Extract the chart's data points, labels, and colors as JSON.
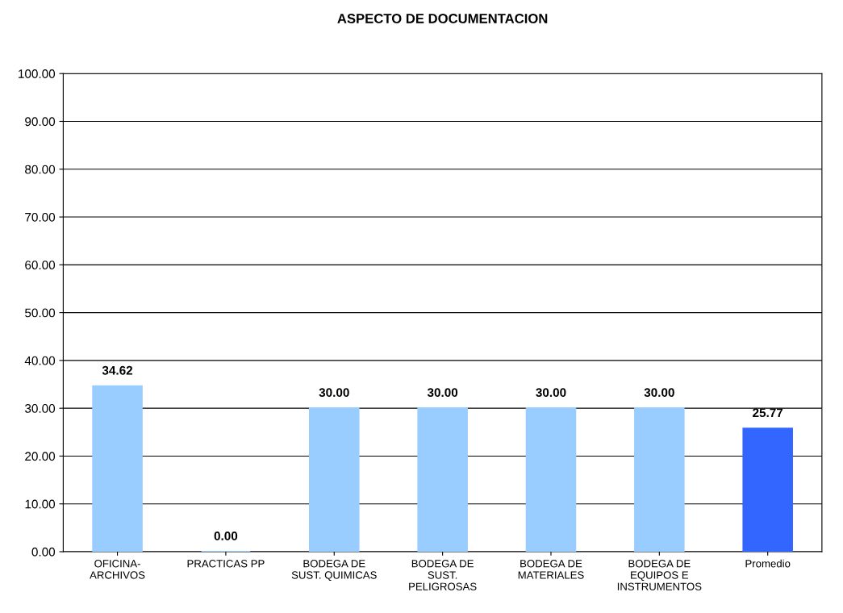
{
  "chart_data": {
    "type": "bar",
    "title": "ASPECTO DE DOCUMENTACION",
    "categories": [
      "OFICINA-\nARCHIVOS",
      "PRACTICAS PP",
      "BODEGA DE\nSUST. QUIMICAS",
      "BODEGA DE\nSUST.\nPELIGROSAS",
      "BODEGA DE\nMATERIALES",
      "BODEGA DE\nEQUIPOS E\nINSTRUMENTOS",
      "Promedio"
    ],
    "values": [
      34.62,
      0,
      30,
      30,
      30,
      30,
      25.77
    ],
    "colors": [
      "#99ccff",
      "#99ccff",
      "#99ccff",
      "#99ccff",
      "#99ccff",
      "#99ccff",
      "#3366ff"
    ],
    "value_labels": [
      "34.62",
      "0.00",
      "30.00",
      "30.00",
      "30.00",
      "30.00",
      "25.77"
    ],
    "ylim": [
      0,
      100
    ],
    "yticks": [
      {
        "value": 0,
        "label": "0.00"
      },
      {
        "value": 10,
        "label": "10.00"
      },
      {
        "value": 20,
        "label": "20.00"
      },
      {
        "value": 30,
        "label": "30.00"
      },
      {
        "value": 40,
        "label": "40.00"
      },
      {
        "value": 50,
        "label": "50.00"
      },
      {
        "value": 60,
        "label": "60.00"
      },
      {
        "value": 70,
        "label": "70.00"
      },
      {
        "value": 80,
        "label": "80.00"
      },
      {
        "value": 90,
        "label": "90.00"
      },
      {
        "value": 100,
        "label": "100.00"
      }
    ],
    "grid": "y",
    "legend": false
  }
}
